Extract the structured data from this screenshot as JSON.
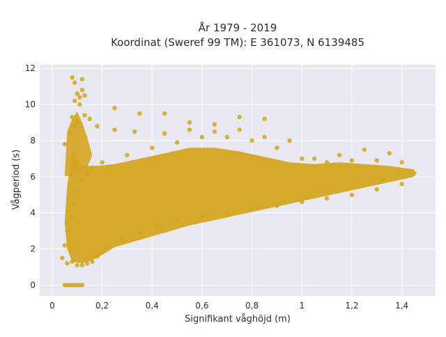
{
  "chart_data": {
    "type": "scatter",
    "title": [
      "År 1979 - 2019",
      "Koordinat (Sweref 99 TM): E 361073, N 6139485"
    ],
    "xlabel": "Signifikant våghöjd (m)",
    "ylabel": "Vågperiod (s)",
    "xlim": [
      -0.05,
      1.535
    ],
    "ylim": [
      -0.6,
      12.2
    ],
    "xticks": [
      0,
      0.2,
      0.4,
      0.6,
      0.8,
      1,
      1.2,
      1.4
    ],
    "xtick_labels": [
      "0",
      "0,2",
      "0,4",
      "0,6",
      "0,8",
      "1",
      "1,2",
      "1,4"
    ],
    "yticks": [
      0,
      2,
      4,
      6,
      8,
      10,
      12
    ],
    "ytick_labels": [
      "0",
      "2",
      "4",
      "6",
      "8",
      "10",
      "12"
    ],
    "grid": true,
    "legend": "none",
    "marker_color": "#d4a520",
    "plot_background": "#e8e8f0",
    "series": [
      {
        "x": [
          0.05,
          0.06,
          0.07,
          0.08,
          0.09,
          0.1,
          0.11,
          0.12,
          0.04,
          0.06,
          0.05,
          0.08,
          0.1,
          0.12,
          0.14,
          0.16,
          0.18,
          0.22,
          0.28,
          0.35,
          0.42,
          0.5,
          0.6,
          0.7,
          0.8,
          0.9,
          1.0,
          1.1,
          1.2,
          1.3,
          1.4,
          1.45,
          0.06,
          0.08,
          0.09,
          0.1,
          0.12,
          0.14,
          0.16,
          0.2,
          0.3,
          0.4,
          0.5,
          0.6,
          0.7,
          0.8,
          0.9,
          1.0,
          1.1,
          1.2,
          1.3,
          1.4,
          0.07,
          0.08,
          0.09,
          0.11,
          0.13,
          0.15,
          0.18,
          0.25,
          0.33,
          0.45,
          0.55,
          0.65,
          0.75,
          0.85,
          0.95,
          1.05,
          1.15,
          1.25,
          1.35,
          0.08,
          0.09,
          0.1,
          0.12,
          0.25,
          0.35,
          0.45,
          0.55,
          0.65,
          0.75,
          0.85,
          0.05,
          0.07,
          0.1,
          0.13,
          0.11,
          0.09,
          0.12
        ],
        "y": [
          0,
          0,
          0,
          0,
          0,
          0,
          0,
          0,
          1.5,
          1.2,
          2.2,
          1.3,
          1.1,
          1.1,
          1.2,
          1.3,
          1.6,
          2.1,
          2.5,
          2.9,
          3.3,
          3.6,
          3.8,
          4.0,
          4.2,
          4.4,
          4.6,
          4.8,
          5.0,
          5.3,
          5.6,
          6.2,
          3.0,
          3.8,
          4.5,
          5.2,
          5.8,
          6.2,
          6.5,
          6.8,
          7.2,
          7.6,
          7.9,
          8.2,
          8.2,
          8.0,
          7.6,
          7.0,
          6.8,
          6.9,
          6.9,
          6.8,
          8.5,
          9.3,
          10.2,
          10.0,
          9.4,
          9.2,
          8.8,
          8.6,
          8.5,
          8.4,
          8.6,
          8.9,
          9.3,
          9.2,
          8.0,
          7.0,
          7.2,
          7.5,
          7.3,
          11.5,
          11.2,
          10.6,
          10.8,
          9.8,
          9.5,
          9.5,
          9.0,
          8.5,
          8.6,
          8.2,
          7.8,
          8.4,
          9.0,
          10.5,
          10.4,
          8.8,
          11.4
        ]
      }
    ]
  }
}
